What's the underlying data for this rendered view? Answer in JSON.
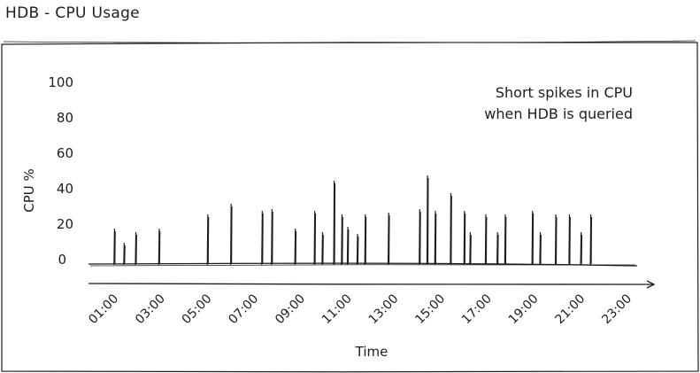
{
  "page": {
    "title": "HDB  - CPU Usage"
  },
  "chart_data": {
    "type": "bar",
    "title": "HDB  - CPU Usage",
    "xlabel": "Time",
    "ylabel": "CPU %",
    "ylim": [
      0,
      100
    ],
    "y_ticks": [
      "0",
      "20",
      "40",
      "60",
      "80",
      "100"
    ],
    "x_ticks": [
      "01:00",
      "03:00",
      "05:00",
      "07:00",
      "09:00",
      "11:00",
      "13:00",
      "15:00",
      "17:00",
      "19:00",
      "21:00",
      "23:00"
    ],
    "annotation": [
      "Short spikes in CPU",
      "when HDB is queried"
    ],
    "grid": false,
    "x": [
      "01:20",
      "01:45",
      "02:15",
      "03:15",
      "05:20",
      "06:20",
      "07:40",
      "08:05",
      "09:05",
      "09:55",
      "10:15",
      "10:45",
      "11:05",
      "11:20",
      "11:45",
      "12:05",
      "13:05",
      "14:25",
      "14:45",
      "15:05",
      "15:45",
      "16:20",
      "16:35",
      "17:15",
      "17:45",
      "18:05",
      "19:15",
      "19:35",
      "20:15",
      "20:50",
      "21:20",
      "21:45"
    ],
    "values": [
      20,
      12,
      18,
      20,
      28,
      34,
      30,
      31,
      20,
      30,
      18,
      47,
      28,
      21,
      17,
      28,
      29,
      31,
      50,
      30,
      40,
      30,
      18,
      28,
      18,
      28,
      30,
      18,
      28,
      28,
      18,
      28
    ]
  }
}
